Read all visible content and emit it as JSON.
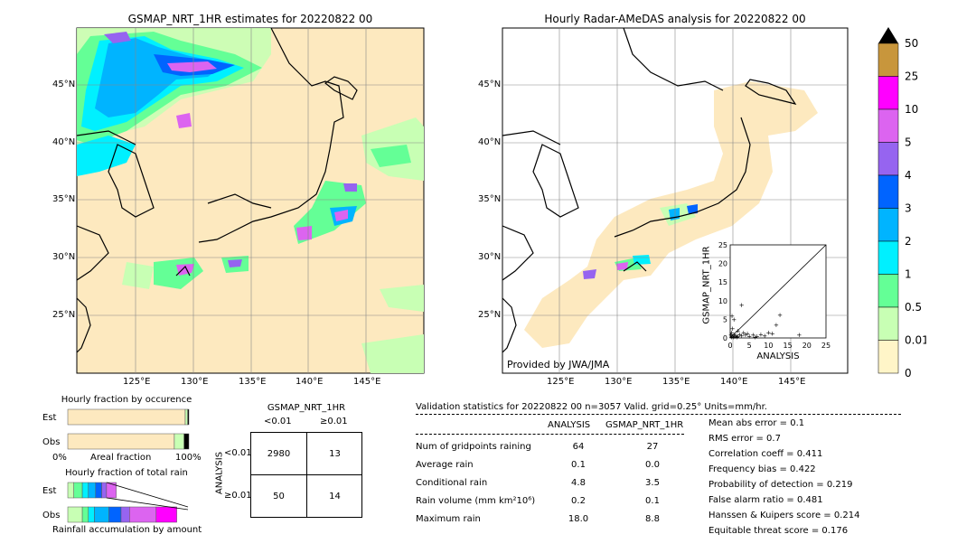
{
  "left_map": {
    "title": "GSMAP_NRT_1HR estimates for 20220822 00",
    "lat_labels": [
      "45°N",
      "40°N",
      "35°N",
      "30°N",
      "25°N"
    ],
    "lon_labels": [
      "125°E",
      "130°E",
      "135°E",
      "140°E",
      "145°E"
    ]
  },
  "right_map": {
    "title": "Hourly Radar-AMeDAS analysis for 20220822 00",
    "lat_labels": [
      "45°N",
      "40°N",
      "35°N",
      "30°N",
      "25°N"
    ],
    "lon_labels": [
      "125°E",
      "130°E",
      "135°E",
      "140°E",
      "145°E"
    ],
    "credit": "Provided by JWA/JMA"
  },
  "colorbar": {
    "labels": [
      "50",
      "25",
      "10",
      "5",
      "4",
      "3",
      "2",
      "1",
      "0.5",
      "0.01",
      "0"
    ],
    "colors": [
      "#c8963c",
      "#ff00ff",
      "#dc64f0",
      "#9664f0",
      "#0064ff",
      "#00b4ff",
      "#00f0ff",
      "#64ff96",
      "#c8ffb4",
      "#fff5c8"
    ],
    "extend_color": "#000000"
  },
  "scatter_inset": {
    "xlabel": "ANALYSIS",
    "ylabel": "GSMAP_NRT_1HR",
    "ticks": [
      "0",
      "5",
      "10",
      "15",
      "20",
      "25"
    ]
  },
  "occurrence": {
    "title": "Hourly fraction by occurence",
    "row_labels": [
      "Est",
      "Obs"
    ],
    "axis_left": "0%",
    "axis_mid": "Areal fraction",
    "axis_right": "100%"
  },
  "total_rain": {
    "title": "Hourly fraction of total rain",
    "row_labels": [
      "Est",
      "Obs"
    ],
    "footer": "Rainfall accumulation by amount"
  },
  "contingency": {
    "title": "GSMAP_NRT_1HR",
    "col_labels": [
      "<0.01",
      "≥0.01"
    ],
    "row_axis": "ANALYSIS",
    "row_labels": [
      "<0.01",
      "≥0.01"
    ],
    "cells": [
      [
        "2980",
        "13"
      ],
      [
        "50",
        "14"
      ]
    ]
  },
  "validation": {
    "header": "Validation statistics for 20220822 00  n=3057 Valid. grid=0.25° Units=mm/hr.",
    "col_analysis": "ANALYSIS",
    "col_gsmap": "GSMAP_NRT_1HR",
    "rows": [
      {
        "label": "Num of gridpoints raining",
        "analysis": "64",
        "gsmap": "27"
      },
      {
        "label": "Average rain",
        "analysis": "0.1",
        "gsmap": "0.0"
      },
      {
        "label": "Conditional rain",
        "analysis": "4.8",
        "gsmap": "3.5"
      },
      {
        "label": "Rain volume (mm km²10⁶)",
        "analysis": "0.2",
        "gsmap": "0.1"
      },
      {
        "label": "Maximum rain",
        "analysis": "18.0",
        "gsmap": "8.8"
      }
    ],
    "scores": [
      "Mean abs error =    0.1",
      "RMS error =    0.7",
      "Correlation coeff =  0.411",
      "Frequency bias =  0.422",
      "Probability of detection =  0.219",
      "False alarm ratio =  0.481",
      "Hanssen & Kuipers score =  0.214",
      "Equitable threat score =  0.176"
    ]
  },
  "chart_data": [
    {
      "type": "scatter",
      "xlabel": "ANALYSIS",
      "ylabel": "GSMAP_NRT_1HR",
      "xlim": [
        0,
        25
      ],
      "ylim": [
        0,
        25
      ],
      "points": [
        [
          0.3,
          0.2
        ],
        [
          0.5,
          0.5
        ],
        [
          0.8,
          0.3
        ],
        [
          1.0,
          1.0
        ],
        [
          1.2,
          0.4
        ],
        [
          0.4,
          1.5
        ],
        [
          0.6,
          2.5
        ],
        [
          1.5,
          0.6
        ],
        [
          2.0,
          0.5
        ],
        [
          2.5,
          1.0
        ],
        [
          3.0,
          0.6
        ],
        [
          3.5,
          1.5
        ],
        [
          4.0,
          0.8
        ],
        [
          4.5,
          1.2
        ],
        [
          5.0,
          0.5
        ],
        [
          6.0,
          0.8
        ],
        [
          7.0,
          0.5
        ],
        [
          8.0,
          1.0
        ],
        [
          9.0,
          0.6
        ],
        [
          10.0,
          1.5
        ],
        [
          12.0,
          3.5
        ],
        [
          13.0,
          6.2
        ],
        [
          18.0,
          0.8
        ],
        [
          3.0,
          8.8
        ],
        [
          1.0,
          5.0
        ],
        [
          0.5,
          6.0
        ],
        [
          2.0,
          2.0
        ],
        [
          1.8,
          0.2
        ],
        [
          0.2,
          0.8
        ],
        [
          6.5,
          0.3
        ],
        [
          11.0,
          1.2
        ]
      ]
    },
    {
      "type": "bar",
      "title": "Hourly fraction by occurence",
      "categories": [
        "Est",
        "Obs"
      ],
      "series": [
        {
          "values": [
            0.97,
            0.88
          ]
        },
        {
          "values": [
            0.02,
            0.08
          ]
        },
        {
          "values": [
            0.01,
            0.04
          ]
        }
      ]
    },
    {
      "type": "bar",
      "title": "Hourly fraction of total rain",
      "categories": [
        "Est",
        "Obs"
      ],
      "series": [
        {
          "values": [
            0.05,
            0.12
          ]
        },
        {
          "values": [
            0.07,
            0.05
          ]
        },
        {
          "values": [
            0.05,
            0.05
          ]
        },
        {
          "values": [
            0.06,
            0.12
          ]
        },
        {
          "values": [
            0.05,
            0.1
          ]
        },
        {
          "values": [
            0.04,
            0.07
          ]
        },
        {
          "values": [
            0.08,
            0.22
          ]
        },
        {
          "values": [
            0.0,
            0.17
          ]
        }
      ]
    }
  ]
}
